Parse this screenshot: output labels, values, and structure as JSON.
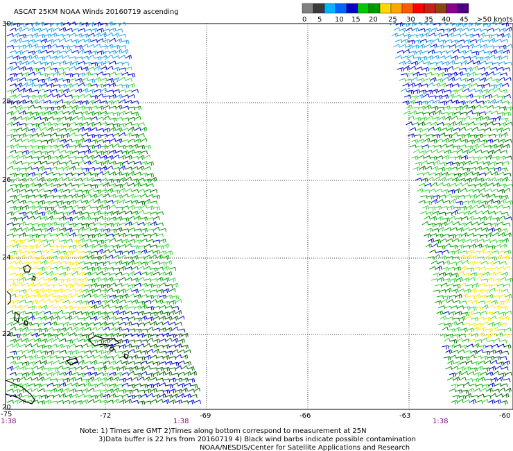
{
  "title": "ASCAT 25KM NOAA Winds 20160719 ascending",
  "legend": {
    "labels": [
      "0",
      "5",
      "10",
      "15",
      "20",
      "25",
      "30",
      "35",
      "40",
      "45",
      ">50 knots"
    ],
    "colors": [
      "#808080",
      "#3a3a3a",
      "#00b4ff",
      "#0064ff",
      "#0000c8",
      "#00c800",
      "#009600",
      "#ffd700",
      "#ffa500",
      "#ff5a00",
      "#ff0000",
      "#c81e1e",
      "#8b4513",
      "#8b008b",
      "#4b0082"
    ]
  },
  "latitude_labels": [
    "30",
    "28",
    "26",
    "24",
    "22",
    "20"
  ],
  "longitude_labels": [
    "-75",
    "-72",
    "-69",
    "-66",
    "-63",
    "-60"
  ],
  "time_labels": [
    "1:38",
    "1:38",
    "1:38"
  ],
  "notes": [
    "Note: 1) Times are GMT 2)Times along bottom correspond to measurement at 25N",
    "3)Data buffer is 22 hrs from 20160719 4) Black wind barbs indicate possible contamination",
    "NOAA/NESDIS/Center for Satellite Applications and Research"
  ],
  "wind_colors": {
    "blue_light": "#1aa0e6",
    "blue": "#0000cc",
    "green_light": "#3cd23c",
    "green": "#00a000",
    "green_dark": "#006400",
    "yellow": "#ffe600"
  }
}
